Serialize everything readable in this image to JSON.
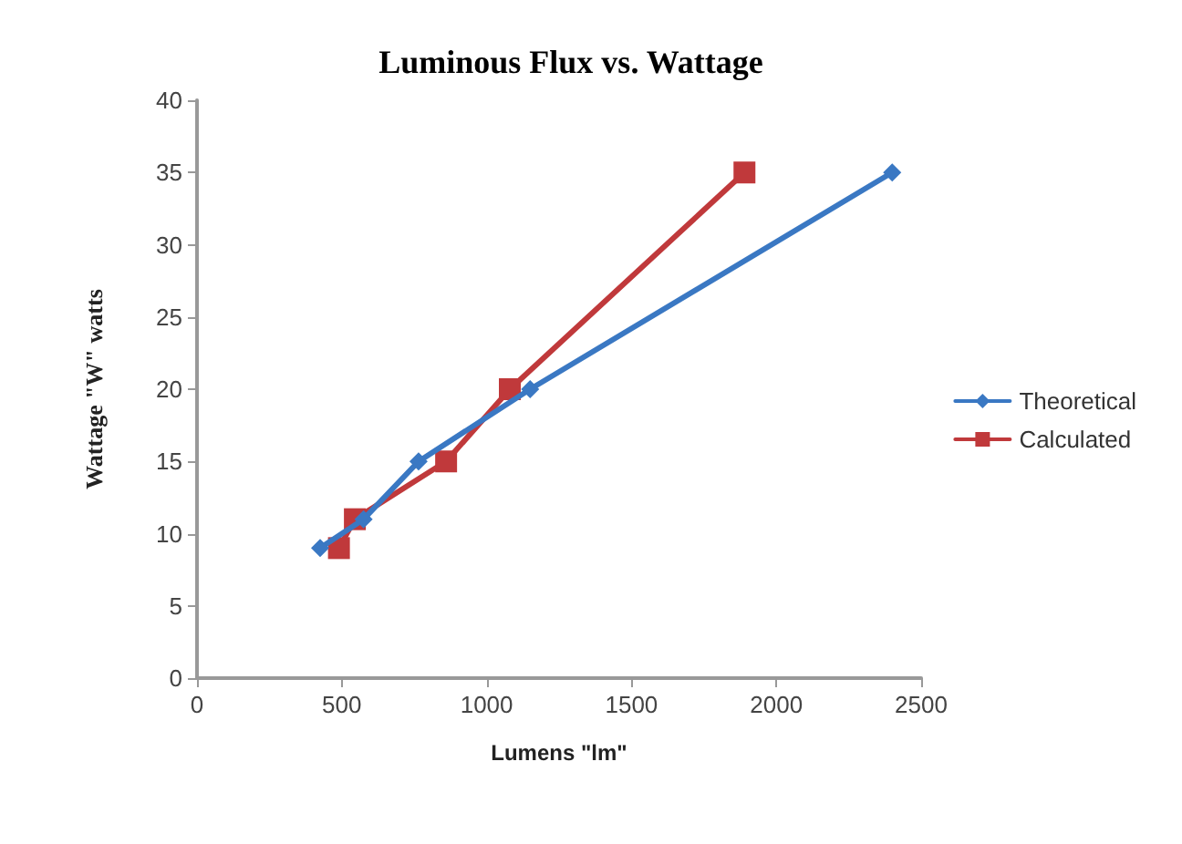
{
  "chart_data": {
    "type": "line",
    "title": "Luminous Flux vs. Wattage",
    "xlabel": "Lumens \"lm\"",
    "ylabel": "Wattage \"W\" watts",
    "series": [
      {
        "name": "Theoretical",
        "color": "#3a78c3",
        "marker": "diamond",
        "x": [
          425,
          575,
          765,
          1150,
          2400
        ],
        "values": [
          9,
          11,
          15,
          20,
          35
        ]
      },
      {
        "name": "Calculated",
        "color": "#c0393b",
        "marker": "square",
        "x": [
          490,
          545,
          860,
          1080,
          1890
        ],
        "values": [
          9,
          11,
          15,
          20,
          35
        ]
      }
    ],
    "xlim": [
      0,
      2500
    ],
    "xticks": [
      0,
      500,
      1000,
      1500,
      2000,
      2500
    ],
    "ylim": [
      0,
      40
    ],
    "yticks": [
      0,
      5,
      10,
      15,
      20,
      25,
      30,
      35,
      40
    ],
    "grid": false,
    "legend": "right",
    "line_style": "solid"
  }
}
